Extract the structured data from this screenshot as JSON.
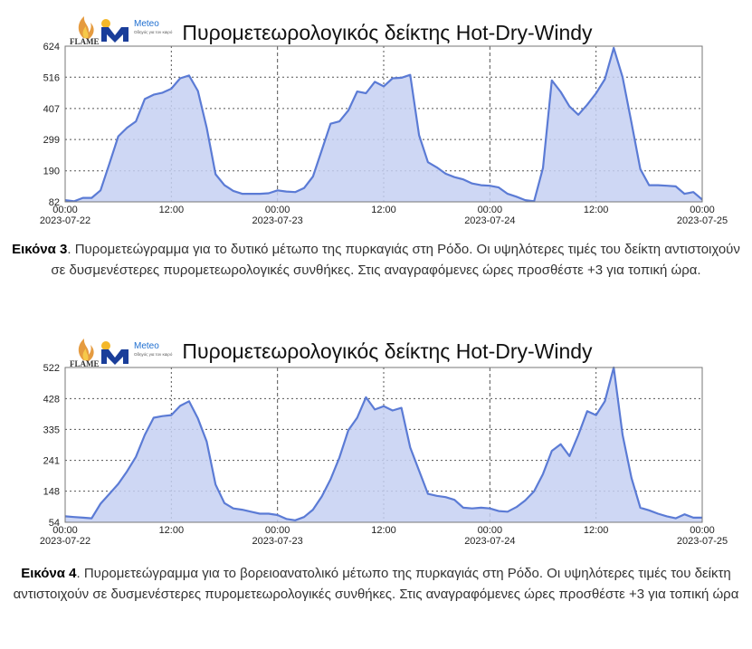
{
  "brand": {
    "flame_text": "FLAME",
    "meteo_text": "Meteo",
    "meteo_tagline": "Οδηγός για τον καιρό",
    "meteo_color": "#1a3e9a",
    "flame_color": "#e08a1e"
  },
  "colors": {
    "line": "#5b7bd5",
    "fill": "#c5d0f2",
    "grid": "#555555",
    "day_separator": "#555555"
  },
  "captions": [
    {
      "label": "Εικόνα 3",
      "text": ". Πυρομετεώγραμμα για το δυτικό μέτωπο της πυρκαγιάς στη Ρόδο. Οι υψηλότερες τιμές του δείκτη αντιστοιχούν σε δυσμενέστερες πυρομετεωρολογικές συνθήκες. Στις αναγραφόμενες ώρες προσθέστε +3 για τοπική ώρα."
    },
    {
      "label": "Εικόνα 4",
      "text": ". Πυρομετεώγραμμα για το βορειοανατολικό μέτωπο της πυρκαγιάς στη Ρόδο. Οι υψηλότερες τιμές του δείκτη αντιστοιχούν σε δυσμενέστερες πυρομετεωρολογικές συνθήκες. Στις αναγραφόμενες ώρες προσθέστε +3 για τοπική ώρα"
    }
  ],
  "chart_data": [
    {
      "type": "area",
      "title": "Πυρομετεωρολογικός δείκτης Hot-Dry-Windy",
      "xlabel": "",
      "ylabel": "",
      "xlim": [
        "2023-07-22 00:00",
        "2023-07-25 00:00"
      ],
      "ylim": [
        82,
        624
      ],
      "yticks": [
        82,
        190,
        299,
        407,
        516,
        624
      ],
      "xticks": [
        {
          "t": 0,
          "time": "00:00",
          "date": "2023-07-22"
        },
        {
          "t": 12,
          "time": "12:00",
          "date": ""
        },
        {
          "t": 24,
          "time": "00:00",
          "date": "2023-07-23"
        },
        {
          "t": 36,
          "time": "12:00",
          "date": ""
        },
        {
          "t": 48,
          "time": "00:00",
          "date": "2023-07-24"
        },
        {
          "t": 60,
          "time": "12:00",
          "date": ""
        },
        {
          "t": 72,
          "time": "00:00",
          "date": "2023-07-25"
        }
      ],
      "day_separators": [
        24,
        48
      ],
      "grid": true,
      "series": [
        {
          "x": [
            0,
            1,
            2,
            3,
            4,
            5,
            6,
            7,
            8,
            9,
            10,
            11,
            12,
            13,
            14,
            15,
            16,
            17,
            18,
            19,
            20,
            21,
            22,
            23,
            24,
            25,
            26,
            27,
            28,
            29,
            30,
            31,
            32,
            33,
            34,
            35,
            36,
            37,
            38,
            39,
            40,
            41,
            42,
            43,
            44,
            45,
            46,
            47,
            48,
            49,
            50,
            51,
            52,
            53,
            54,
            55,
            56,
            57,
            58,
            59,
            60,
            61,
            62,
            63,
            64,
            65,
            66,
            67,
            68,
            69,
            70,
            71,
            72
          ],
          "values": [
            88,
            84,
            96,
            96,
            122,
            215,
            310,
            340,
            362,
            440,
            455,
            462,
            476,
            512,
            522,
            468,
            340,
            178,
            140,
            120,
            110,
            110,
            110,
            112,
            122,
            118,
            116,
            130,
            170,
            262,
            354,
            362,
            400,
            466,
            460,
            500,
            484,
            512,
            514,
            524,
            314,
            220,
            202,
            180,
            168,
            160,
            146,
            140,
            138,
            132,
            110,
            100,
            88,
            84,
            200,
            505,
            465,
            414,
            385,
            420,
            460,
            509,
            618,
            516,
            358,
            196,
            140,
            140,
            138,
            136,
            110,
            116,
            90
          ]
        }
      ]
    },
    {
      "type": "area",
      "title": "Πυρομετεωρολογικός δείκτης Hot-Dry-Windy",
      "xlabel": "",
      "ylabel": "",
      "xlim": [
        "2023-07-22 00:00",
        "2023-07-25 00:00"
      ],
      "ylim": [
        54,
        522
      ],
      "yticks": [
        54,
        148,
        241,
        335,
        428,
        522
      ],
      "xticks": [
        {
          "t": 0,
          "time": "00:00",
          "date": "2023-07-22"
        },
        {
          "t": 12,
          "time": "12:00",
          "date": ""
        },
        {
          "t": 24,
          "time": "00:00",
          "date": "2023-07-23"
        },
        {
          "t": 36,
          "time": "12:00",
          "date": ""
        },
        {
          "t": 48,
          "time": "00:00",
          "date": "2023-07-24"
        },
        {
          "t": 60,
          "time": "12:00",
          "date": ""
        },
        {
          "t": 72,
          "time": "00:00",
          "date": "2023-07-25"
        }
      ],
      "day_separators": [
        24,
        48
      ],
      "grid": true,
      "series": [
        {
          "x": [
            0,
            1,
            2,
            3,
            4,
            5,
            6,
            7,
            8,
            9,
            10,
            11,
            12,
            13,
            14,
            15,
            16,
            17,
            18,
            19,
            20,
            21,
            22,
            23,
            24,
            25,
            26,
            27,
            28,
            29,
            30,
            31,
            32,
            33,
            34,
            35,
            36,
            37,
            38,
            39,
            40,
            41,
            42,
            43,
            44,
            45,
            46,
            47,
            48,
            49,
            50,
            51,
            52,
            53,
            54,
            55,
            56,
            57,
            58,
            59,
            60,
            61,
            62,
            63,
            64,
            65,
            66,
            67,
            68,
            69,
            70,
            71,
            72
          ],
          "values": [
            72,
            70,
            68,
            66,
            110,
            140,
            170,
            208,
            252,
            318,
            370,
            375,
            378,
            406,
            420,
            368,
            298,
            168,
            112,
            96,
            92,
            86,
            80,
            80,
            76,
            64,
            60,
            70,
            92,
            132,
            184,
            250,
            332,
            370,
            432,
            395,
            405,
            392,
            400,
            280,
            210,
            140,
            134,
            130,
            122,
            98,
            96,
            98,
            96,
            88,
            86,
            100,
            120,
            148,
            200,
            270,
            290,
            254,
            318,
            390,
            378,
            420,
            522,
            318,
            188,
            98,
            90,
            80,
            72,
            66,
            78,
            68,
            68
          ]
        }
      ]
    }
  ]
}
